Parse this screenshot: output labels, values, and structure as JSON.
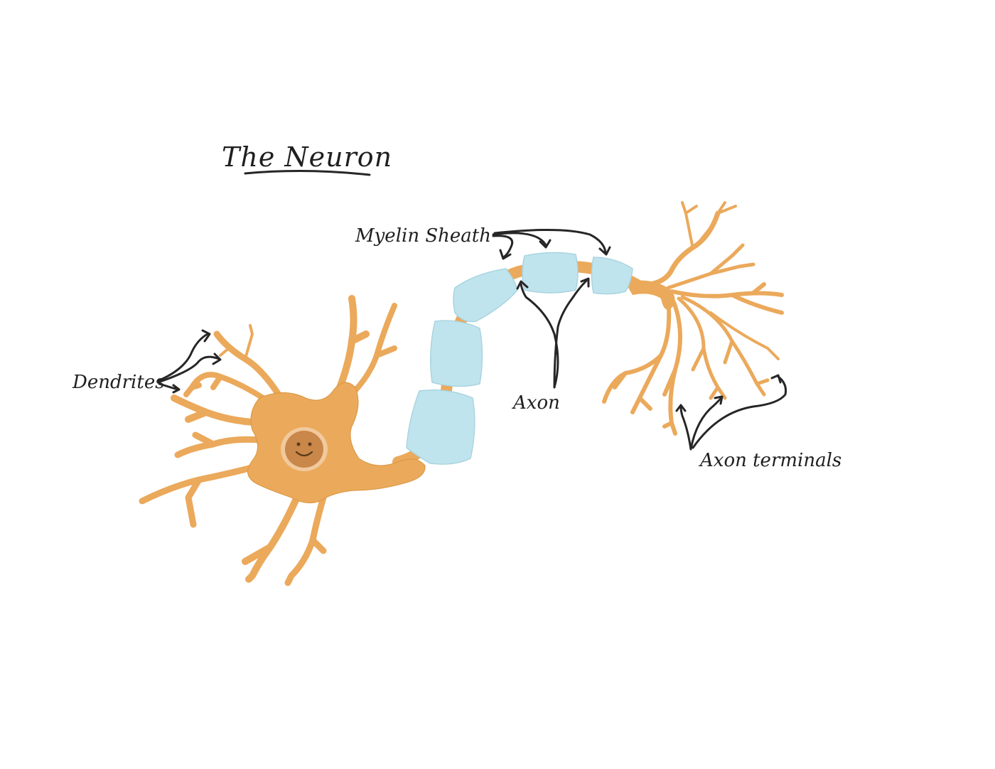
{
  "title": "The Neuron",
  "labels": {
    "dendrites": "Dendrites",
    "myelin_sheath": "Myelin Sheath",
    "axon": "Axon",
    "axon_terminals": "Axon terminals"
  },
  "colors": {
    "cell": "#eba95b",
    "cell_outline": "#d9953f",
    "myelin": "#bfe4ee",
    "nucleus": "#c9874a",
    "nucleus_ring": "#f1c99c",
    "ink": "#262626"
  }
}
